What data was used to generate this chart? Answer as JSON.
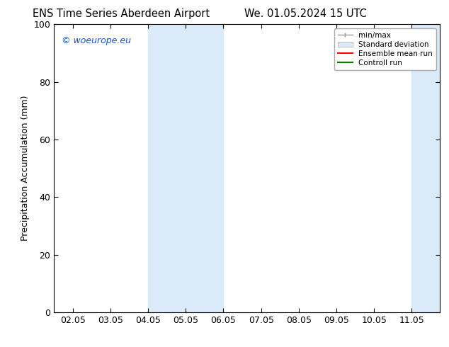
{
  "title_left": "ENS Time Series Aberdeen Airport",
  "title_right": "We. 01.05.2024 15 UTC",
  "ylabel": "Precipitation Accumulation (mm)",
  "ylim": [
    0,
    100
  ],
  "yticks": [
    0,
    20,
    40,
    60,
    80,
    100
  ],
  "xtick_labels": [
    "02.05",
    "03.05",
    "04.05",
    "05.05",
    "06.05",
    "07.05",
    "08.05",
    "09.05",
    "10.05",
    "11.05"
  ],
  "x_positions": [
    2.05,
    3.05,
    4.05,
    5.05,
    6.05,
    7.05,
    8.05,
    9.05,
    10.05,
    11.05
  ],
  "x_min": 1.55,
  "x_max": 11.8,
  "shaded_regions": [
    {
      "x_start": 4.05,
      "x_end": 5.05,
      "color": "#ddeeff"
    },
    {
      "x_start": 5.05,
      "x_end": 6.05,
      "color": "#ddeeff"
    },
    {
      "x_start": 11.05,
      "x_end": 11.55,
      "color": "#ddeeff"
    },
    {
      "x_start": 11.55,
      "x_end": 11.8,
      "color": "#ddeeff"
    }
  ],
  "watermark_text": "© woeurope.eu",
  "watermark_color": "#1155cc",
  "legend_entries": [
    {
      "label": "min/max",
      "color": "#999999",
      "linestyle": "-",
      "linewidth": 1.0
    },
    {
      "label": "Standard deviation",
      "color": "#ccddee",
      "linestyle": "-",
      "linewidth": 6
    },
    {
      "label": "Ensemble mean run",
      "color": "red",
      "linestyle": "-",
      "linewidth": 1.5
    },
    {
      "label": "Controll run",
      "color": "green",
      "linestyle": "-",
      "linewidth": 1.5
    }
  ],
  "background_color": "#ffffff",
  "plot_bg_color": "#ffffff",
  "font_size": 9,
  "title_font_size": 10.5
}
